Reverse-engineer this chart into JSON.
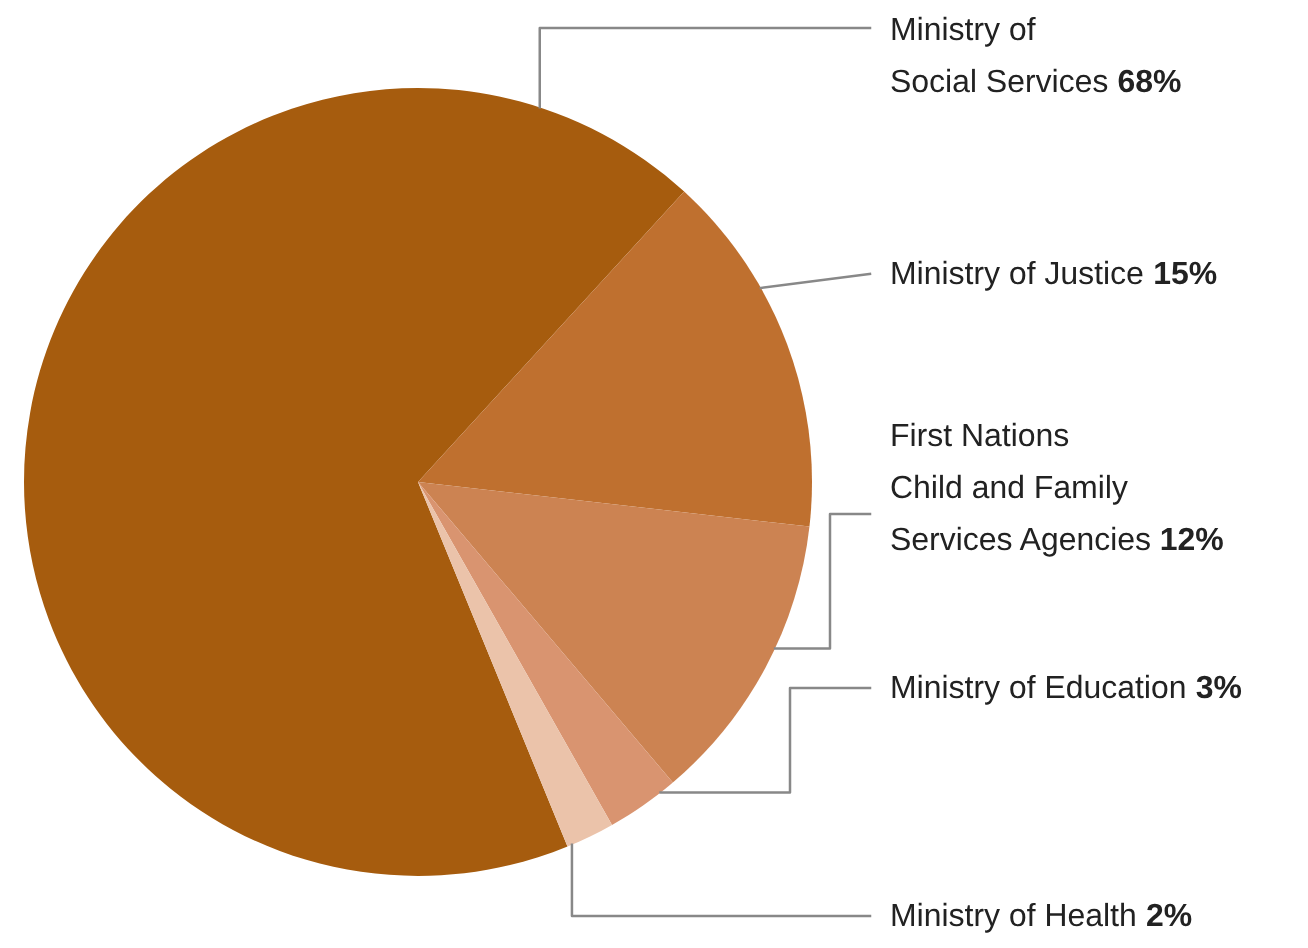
{
  "chart_data": {
    "type": "pie",
    "categories": [
      "Ministry of\nSocial Services",
      "Ministry of Justice",
      "First Nations\nChild and Family\nServices Agencies",
      "Ministry of Education",
      "Ministry of Health"
    ],
    "values": [
      68,
      15,
      12,
      3,
      2
    ],
    "value_labels": [
      "68%",
      "15%",
      "12%",
      "3%",
      "2%"
    ],
    "colors": [
      "#a65c0e",
      "#bf702f",
      "#cc8352",
      "#d99470",
      "#ebc3aa"
    ],
    "legend": false
  }
}
